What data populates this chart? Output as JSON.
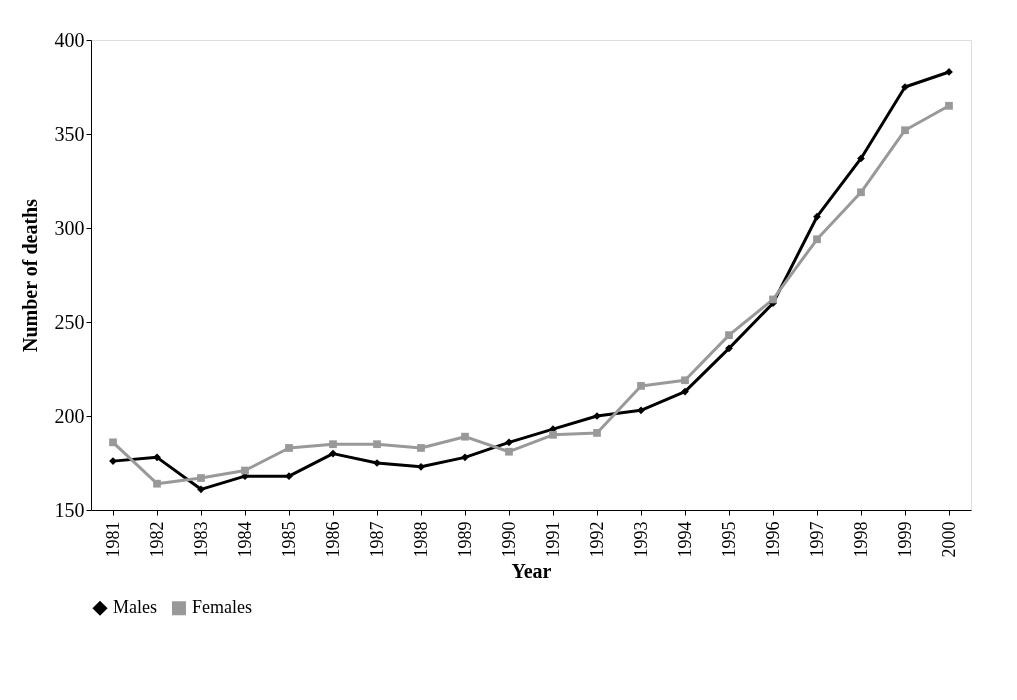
{
  "chart_data": {
    "type": "line",
    "xlabel": "Year",
    "ylabel": "Number of deaths",
    "categories": [
      "1981",
      "1982",
      "1983",
      "1984",
      "1985",
      "1986",
      "1987",
      "1988",
      "1989",
      "1990",
      "1991",
      "1992",
      "1993",
      "1994",
      "1995",
      "1996",
      "1997",
      "1998",
      "1999",
      "2000"
    ],
    "series": [
      {
        "name": "Males",
        "color": "#000000",
        "marker": "diamond",
        "values": [
          176,
          178,
          161,
          168,
          168,
          180,
          175,
          173,
          178,
          186,
          193,
          200,
          203,
          213,
          236,
          260,
          306,
          337,
          375,
          383
        ]
      },
      {
        "name": "Females",
        "color": "#999999",
        "marker": "square",
        "values": [
          186,
          164,
          167,
          171,
          183,
          185,
          185,
          183,
          189,
          181,
          190,
          191,
          216,
          219,
          243,
          262,
          294,
          319,
          352,
          365
        ]
      }
    ],
    "ylim": [
      150,
      400
    ],
    "yticks": [
      150,
      200,
      250,
      300,
      350,
      400
    ],
    "grid": false,
    "legend": "bottom",
    "line_style": "solid"
  }
}
